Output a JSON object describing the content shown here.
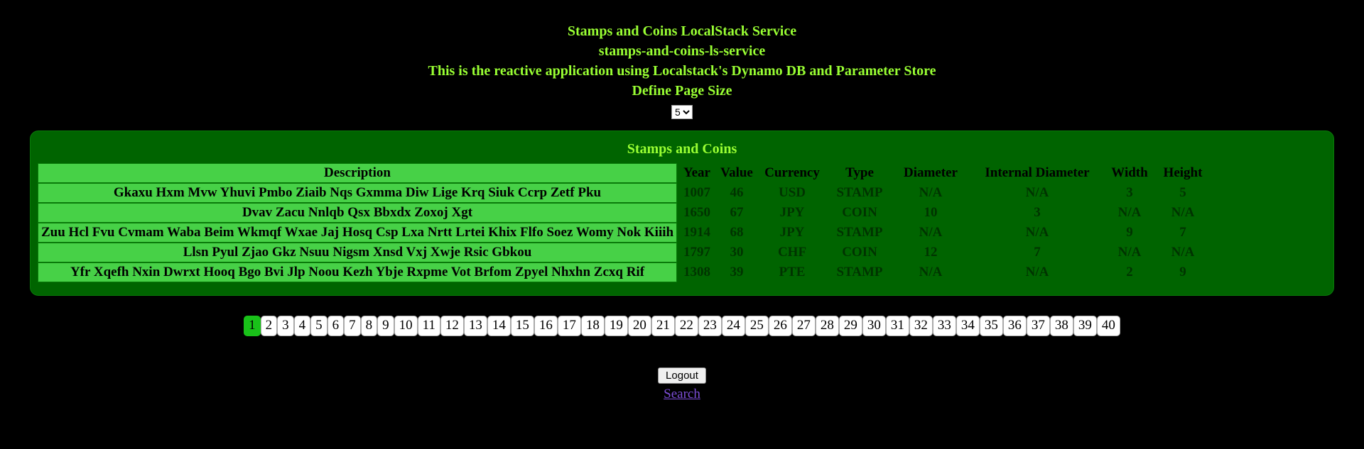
{
  "header": {
    "title": "Stamps and Coins LocalStack Service",
    "subtitle": "stamps-and-coins-ls-service",
    "tagline": "This is the reactive application using Localstack's Dynamo DB and Parameter Store",
    "page_size_label": "Define Page Size"
  },
  "page_size": {
    "selected": "5",
    "options": [
      "5"
    ]
  },
  "panel": {
    "title": "Stamps and Coins"
  },
  "table": {
    "columns": [
      "Description",
      "Year",
      "Value",
      "Currency",
      "Type",
      "Diameter",
      "Internal Diameter",
      "Width",
      "Height"
    ],
    "rows": [
      {
        "description": "Gkaxu Hxm Mvw Yhuvi Pmbo Ziaib Nqs Gxmma Diw Lige Krq Siuk Ccrp Zetf Pku",
        "year": "1007",
        "value": "46",
        "currency": "USD",
        "type": "STAMP",
        "diameter": "N/A",
        "internal_diameter": "N/A",
        "width": "3",
        "height": "5"
      },
      {
        "description": "Dvav Zacu Nnlqb Qsx Bbxdx Zoxoj Xgt",
        "year": "1650",
        "value": "67",
        "currency": "JPY",
        "type": "COIN",
        "diameter": "10",
        "internal_diameter": "3",
        "width": "N/A",
        "height": "N/A"
      },
      {
        "description": "Zuu Hcl Fvu Cvmam Waba Beim Wkmqf Wxae Jaj Hosq Csp Lxa Nrtt Lrtei Khix Flfo Soez Womy Nok Kiiih",
        "year": "1914",
        "value": "68",
        "currency": "JPY",
        "type": "STAMP",
        "diameter": "N/A",
        "internal_diameter": "N/A",
        "width": "9",
        "height": "7"
      },
      {
        "description": "Llsn Pyul Zjao Gkz Nsuu Nigsm Xnsd Vxj Xwje Rsic Gbkou",
        "year": "1797",
        "value": "30",
        "currency": "CHF",
        "type": "COIN",
        "diameter": "12",
        "internal_diameter": "7",
        "width": "N/A",
        "height": "N/A"
      },
      {
        "description": "Yfr Xqefh Nxin Dwrxt Hooq Bgo Bvi Jlp Noou Kezh Ybje Rxpme Vot Brfom Zpyel Nhxhn Zcxq Rif",
        "year": "1308",
        "value": "39",
        "currency": "PTE",
        "type": "STAMP",
        "diameter": "N/A",
        "internal_diameter": "N/A",
        "width": "2",
        "height": "9"
      }
    ]
  },
  "pagination": {
    "current": 1,
    "total": 40
  },
  "footer": {
    "logout_label": "Logout",
    "search_label": "Search"
  },
  "colors": {
    "background": "#000000",
    "header_text": "#99ff33",
    "panel_bg": "#006400",
    "cell_bg": "#47d147",
    "value_text": "#003300",
    "page_active_bg": "#19c119",
    "link_color": "#7d4ed8"
  }
}
